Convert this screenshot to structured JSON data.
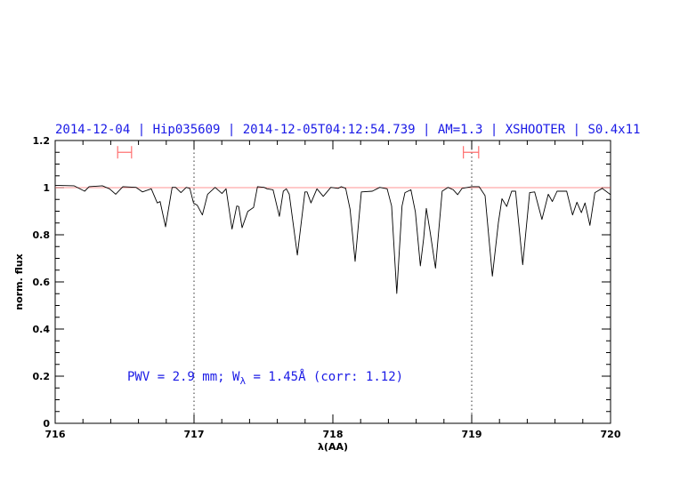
{
  "chart_data": {
    "type": "line",
    "title": "2014-12-04 | Hip035609 | 2014-12-05T04:12:54.739 | AM=1.3 | XSHOOTER | S0.4x11",
    "xlabel": "λ(AA)",
    "ylabel": "norm. flux",
    "xlim": [
      716,
      720
    ],
    "ylim": [
      0,
      1.2
    ],
    "xticks": [
      716,
      717,
      718,
      719,
      720
    ],
    "xtick_labels": [
      "716",
      "717",
      "718",
      "719",
      "720"
    ],
    "yticks": [
      0,
      0.2,
      0.4,
      0.6,
      0.8,
      1,
      1.2
    ],
    "ytick_labels": [
      "0",
      "0.2",
      "0.4",
      "0.6",
      "0.8",
      "1",
      "1.2"
    ],
    "x_minor_step": 0.2,
    "y_minor_step": 0.05,
    "grid": false,
    "reference_line": {
      "y": 1.0,
      "color": "#ff6f6f"
    },
    "vertical_dotted_lines": [
      717,
      719
    ],
    "ranges": [
      {
        "from": 716.45,
        "to": 716.55,
        "y": 1.15,
        "color": "#ff6f6f"
      },
      {
        "from": 718.94,
        "to": 719.05,
        "y": 1.15,
        "color": "#ff6f6f"
      }
    ],
    "annotation": {
      "prefix": "PWV = 2.9 mm; W",
      "subscript": "λ",
      "suffix": " = 1.45Å (corr: 1.12)"
    },
    "series": [
      {
        "color": "#000000",
        "x": [
          716.0,
          716.135,
          716.212,
          716.244,
          716.34,
          716.391,
          716.436,
          716.487,
          716.583,
          716.628,
          716.692,
          716.735,
          716.756,
          716.795,
          716.842,
          716.867,
          716.906,
          716.944,
          716.97,
          716.996,
          717.024,
          717.06,
          717.098,
          717.152,
          717.201,
          717.231,
          717.274,
          717.308,
          717.322,
          717.346,
          717.387,
          717.429,
          717.457,
          717.504,
          717.526,
          717.569,
          717.615,
          717.643,
          717.665,
          717.686,
          717.744,
          717.799,
          717.814,
          717.842,
          717.885,
          717.931,
          717.985,
          718.038,
          718.06,
          718.092,
          718.124,
          718.16,
          718.205,
          718.284,
          718.338,
          718.391,
          718.423,
          718.46,
          718.498,
          718.519,
          718.562,
          718.594,
          718.63,
          718.654,
          718.673,
          718.701,
          718.739,
          718.787,
          718.829,
          718.867,
          718.899,
          718.931,
          719.0,
          719.053,
          719.096,
          719.149,
          719.192,
          719.218,
          719.252,
          719.288,
          719.316,
          719.367,
          719.417,
          719.453,
          719.506,
          719.551,
          719.581,
          719.615,
          719.684,
          719.726,
          719.758,
          719.79,
          719.816,
          719.851,
          719.887,
          719.94,
          720.0
        ],
        "y": [
          1.01,
          1.008,
          0.985,
          1.004,
          1.008,
          0.995,
          0.972,
          1.004,
          1.001,
          0.982,
          0.995,
          0.935,
          0.941,
          0.834,
          1.001,
          1.001,
          0.979,
          1.001,
          0.997,
          0.935,
          0.925,
          0.884,
          0.972,
          1.001,
          0.975,
          0.995,
          0.824,
          0.922,
          0.92,
          0.83,
          0.899,
          0.916,
          1.004,
          1.001,
          0.995,
          0.991,
          0.878,
          0.985,
          0.995,
          0.972,
          0.714,
          0.982,
          0.982,
          0.935,
          0.995,
          0.963,
          1.001,
          0.997,
          1.004,
          0.997,
          0.909,
          0.687,
          0.982,
          0.985,
          1.001,
          0.995,
          0.922,
          0.551,
          0.922,
          0.979,
          0.991,
          0.897,
          0.668,
          0.784,
          0.912,
          0.809,
          0.658,
          0.985,
          1.001,
          0.991,
          0.97,
          0.997,
          1.004,
          1.004,
          0.966,
          0.624,
          0.853,
          0.953,
          0.92,
          0.985,
          0.985,
          0.673,
          0.979,
          0.982,
          0.865,
          0.972,
          0.941,
          0.985,
          0.985,
          0.884,
          0.938,
          0.894,
          0.935,
          0.84,
          0.979,
          0.997,
          0.97
        ]
      }
    ]
  }
}
